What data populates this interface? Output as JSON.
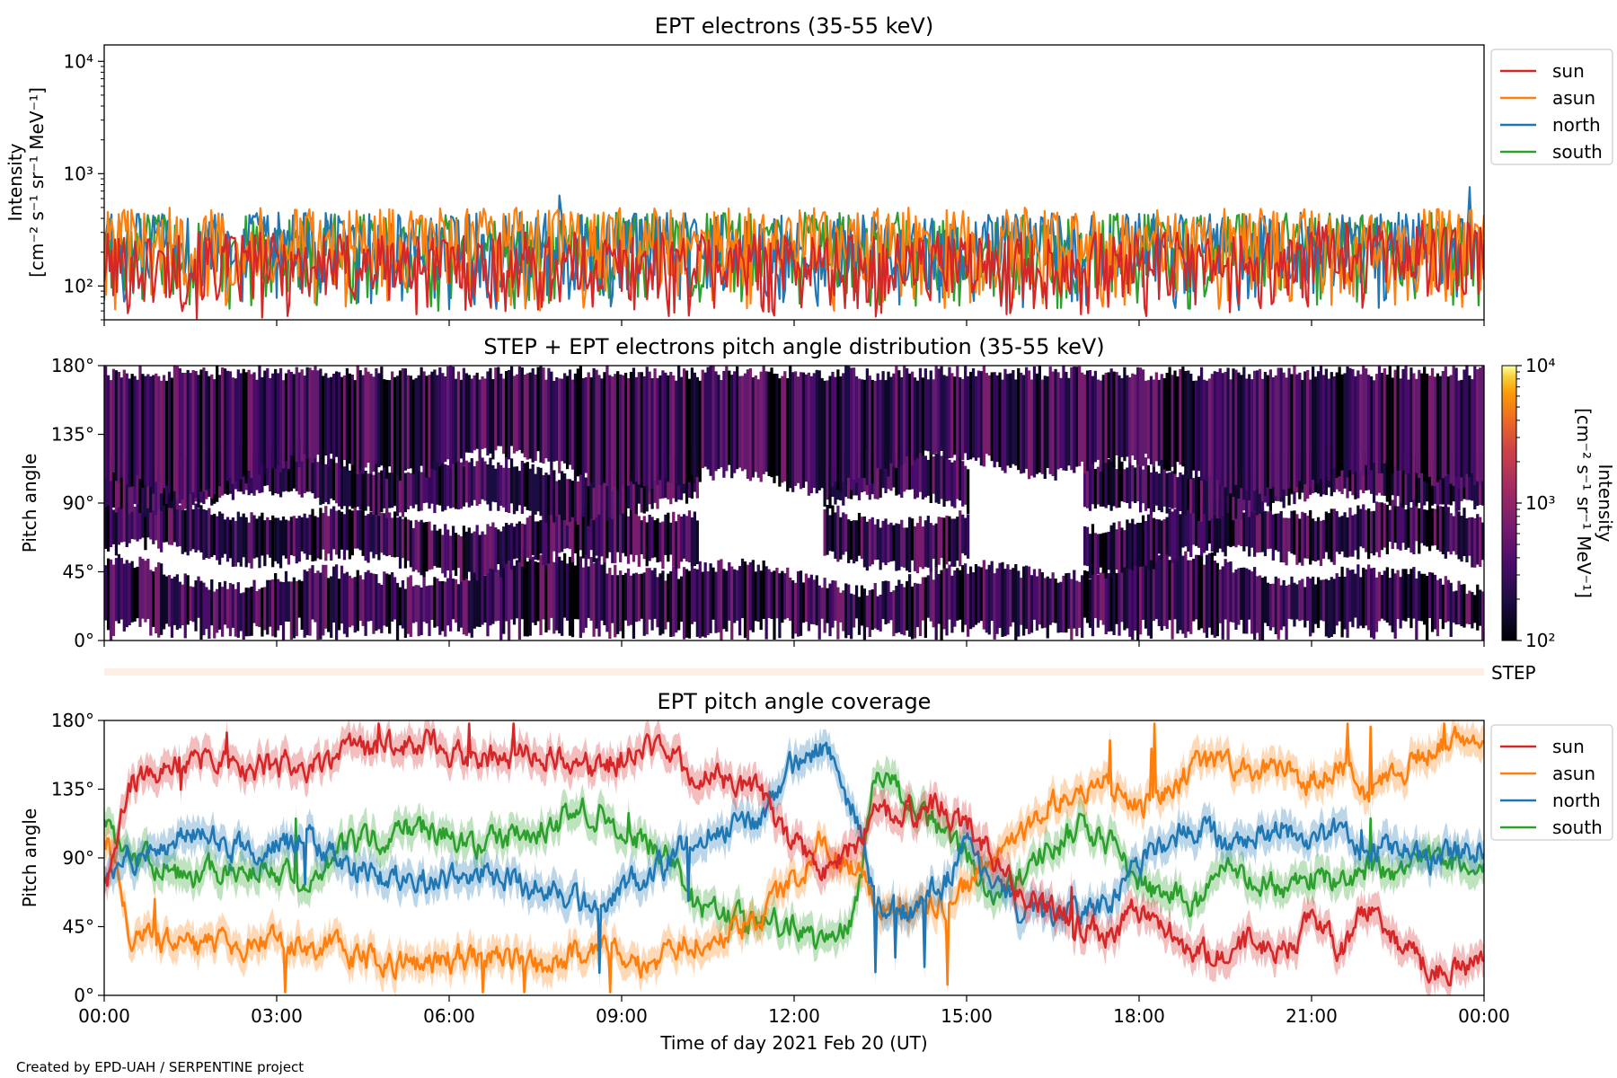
{
  "footer": {
    "credit": "Created by EPD-UAH / SERPENTINE project"
  },
  "legend_loc": "upper-left-outside",
  "chart_data": [
    {
      "type": "line",
      "title": "EPT electrons (35-55 keV)",
      "ylabel": [
        "Intensity",
        "[cm⁻² s⁻¹ sr⁻¹ MeV⁻¹]"
      ],
      "yscale": "log",
      "ylim": [
        50,
        14000
      ],
      "yticks": [
        "10²",
        "10³",
        "10⁴"
      ],
      "x_range": [
        "2021-02-20 00:00",
        "2021-02-21 00:00"
      ],
      "series": [
        {
          "name": "sun",
          "color": "#d62728",
          "typical_range": [
            50,
            300
          ]
        },
        {
          "name": "asun",
          "color": "#ff7f0e",
          "typical_range": [
            60,
            500
          ]
        },
        {
          "name": "north",
          "color": "#1f77b4",
          "typical_range": [
            60,
            450
          ]
        },
        {
          "name": "south",
          "color": "#2ca02c",
          "typical_range": [
            60,
            450
          ]
        }
      ],
      "peaks": [
        {
          "x": "07:55",
          "series": "north",
          "y": 640
        },
        {
          "x": "23:45",
          "series": "north",
          "y": 760
        }
      ]
    },
    {
      "type": "heatmap",
      "title": "STEP + EPT electrons pitch angle distribution (35-55 keV)",
      "ylabel": "Pitch angle",
      "ylim": [
        0,
        180
      ],
      "yticks": [
        "0°",
        "45°",
        "90°",
        "135°",
        "180°"
      ],
      "colorbar": {
        "label": [
          "Intensity",
          "[cm⁻² s⁻¹ sr⁻¹ MeV⁻¹]"
        ],
        "scale": "log",
        "range": [
          100,
          10000
        ],
        "ticks": [
          "10²",
          "10³",
          "10⁴"
        ],
        "colormap": "inferno"
      },
      "typical_intensity": [
        100,
        400
      ]
    },
    {
      "type": "bar",
      "label": "STEP",
      "color": "#fdeee6"
    },
    {
      "type": "line",
      "title": "EPT pitch angle coverage",
      "ylabel": "Pitch angle",
      "xlabel": "Time of day 2021 Feb 20 (UT)",
      "ylim": [
        0,
        180
      ],
      "yticks": [
        "0°",
        "45°",
        "90°",
        "135°",
        "180°"
      ],
      "xticks": [
        "00:00",
        "03:00",
        "06:00",
        "09:00",
        "12:00",
        "15:00",
        "18:00",
        "21:00",
        "00:00"
      ],
      "series": [
        {
          "name": "sun",
          "color": "#d62728",
          "x_hours": [
            0,
            0.5,
            1.5,
            2.5,
            3.5,
            4.5,
            5.5,
            6.5,
            7.5,
            8.5,
            9.5,
            10.5,
            11.3,
            12.0,
            12.5,
            13.0,
            13.5,
            14.0,
            14.5,
            15.0,
            15.5,
            16.0,
            16.5,
            17.0,
            17.5,
            18.0,
            18.5,
            19.0,
            19.5,
            20.0,
            20.5,
            21.0,
            21.5,
            22.0,
            22.5,
            23.0,
            23.5,
            24.0
          ],
          "y": [
            75,
            140,
            155,
            150,
            150,
            160,
            165,
            155,
            160,
            150,
            160,
            142,
            135,
            100,
            80,
            95,
            120,
            120,
            125,
            110,
            90,
            65,
            55,
            45,
            40,
            55,
            40,
            30,
            25,
            35,
            30,
            45,
            30,
            55,
            35,
            20,
            15,
            20
          ]
        },
        {
          "name": "asun",
          "color": "#ff7f0e",
          "x_hours": [
            0,
            0.5,
            1.5,
            2.5,
            3.5,
            4.5,
            5.5,
            6.5,
            7.5,
            8.5,
            9.5,
            10.5,
            11.3,
            12.0,
            12.5,
            13.0,
            13.5,
            14.0,
            14.5,
            15.0,
            15.5,
            16.0,
            16.5,
            17.0,
            17.5,
            18.0,
            18.5,
            19.0,
            19.5,
            20.0,
            20.5,
            21.0,
            21.5,
            22.0,
            22.5,
            23.0,
            23.5,
            24.0
          ],
          "y": [
            100,
            40,
            30,
            35,
            35,
            25,
            20,
            25,
            20,
            30,
            20,
            40,
            45,
            75,
            100,
            85,
            60,
            55,
            60,
            70,
            90,
            110,
            125,
            135,
            140,
            125,
            135,
            150,
            155,
            145,
            150,
            140,
            150,
            130,
            145,
            160,
            165,
            160
          ]
        },
        {
          "name": "north",
          "color": "#1f77b4",
          "x_hours": [
            0,
            0.5,
            1.5,
            2.5,
            3.5,
            4.5,
            5.5,
            6.5,
            7.5,
            8.5,
            9.5,
            10.5,
            11.3,
            12.0,
            12.5,
            13.0,
            13.5,
            14.0,
            14.5,
            15.0,
            15.5,
            16.0,
            16.5,
            17.0,
            17.5,
            18.0,
            18.5,
            19.0,
            19.5,
            20.0,
            20.5,
            21.0,
            21.5,
            22.0,
            22.5,
            23.0,
            23.5,
            24.0
          ],
          "y": [
            70,
            90,
            105,
            95,
            100,
            80,
            75,
            80,
            70,
            60,
            80,
            108,
            115,
            150,
            160,
            120,
            60,
            55,
            70,
            95,
            75,
            55,
            50,
            55,
            60,
            90,
            100,
            110,
            100,
            105,
            110,
            100,
            105,
            95,
            100,
            90,
            95,
            95
          ]
        },
        {
          "name": "south",
          "color": "#2ca02c",
          "x_hours": [
            0,
            0.5,
            1.5,
            2.5,
            3.5,
            4.5,
            5.5,
            6.5,
            7.5,
            8.5,
            9.5,
            10.5,
            11.3,
            12.0,
            12.5,
            13.0,
            13.5,
            14.0,
            14.5,
            15.0,
            15.5,
            16.0,
            16.5,
            17.0,
            17.5,
            18.0,
            18.5,
            19.0,
            19.5,
            20.0,
            20.5,
            21.0,
            21.5,
            22.0,
            22.5,
            23.0,
            23.5,
            24.0
          ],
          "y": [
            110,
            90,
            80,
            85,
            80,
            100,
            110,
            100,
            110,
            120,
            100,
            55,
            50,
            45,
            30,
            50,
            150,
            130,
            110,
            90,
            65,
            80,
            100,
            110,
            100,
            70,
            65,
            60,
            80,
            75,
            70,
            80,
            75,
            85,
            80,
            90,
            85,
            90
          ]
        }
      ]
    }
  ]
}
